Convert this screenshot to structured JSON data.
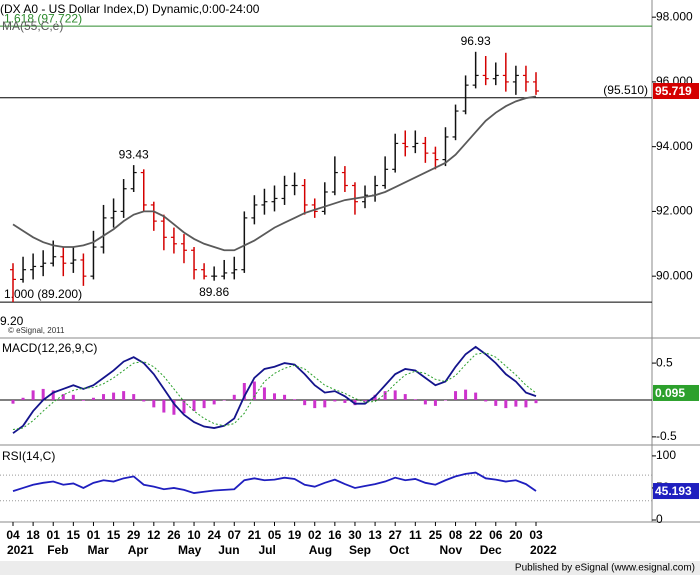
{
  "chart_data": [
    {
      "type": "ohlc",
      "title": "(DX A0 - US Dollar Index,D) Dynamic,0:00-24:00",
      "categories": [
        "04",
        null,
        "18",
        null,
        "01",
        null,
        "15",
        null,
        "01",
        null,
        "15",
        null,
        "29",
        null,
        "12",
        null,
        "26",
        null,
        "10",
        null,
        "24",
        null,
        "07",
        null,
        "21",
        null,
        "05",
        null,
        "19",
        null,
        "02",
        null,
        "16",
        null,
        "30",
        null,
        "13",
        null,
        "27",
        null,
        "11",
        null,
        "25",
        null,
        "08",
        null,
        "22",
        null,
        "06",
        null,
        "20",
        null,
        "03"
      ],
      "months": [
        "2021",
        null,
        null,
        null,
        "Feb",
        null,
        null,
        null,
        "Mar",
        null,
        null,
        null,
        "Apr",
        null,
        null,
        null,
        null,
        "May",
        null,
        null,
        null,
        "Jun",
        null,
        null,
        null,
        "Jul",
        null,
        null,
        null,
        null,
        "Aug",
        null,
        null,
        null,
        "Sep",
        null,
        null,
        null,
        "Oct",
        null,
        null,
        null,
        null,
        "Nov",
        null,
        null,
        null,
        "Dec",
        null,
        null,
        null,
        null,
        "2022"
      ],
      "open": [
        90.2,
        89.9,
        90.2,
        90.3,
        90.4,
        90.6,
        90.4,
        90.5,
        90.0,
        90.9,
        91.8,
        92.0,
        92.7,
        93.2,
        92.2,
        91.7,
        91.2,
        91.0,
        90.8,
        90.2,
        90.0,
        90.0,
        90.1,
        90.2,
        91.8,
        92.2,
        92.3,
        92.4,
        92.8,
        92.8,
        92.2,
        92.0,
        92.6,
        93.2,
        92.8,
        92.3,
        92.5,
        92.8,
        93.3,
        94.1,
        94.0,
        94.1,
        93.8,
        93.6,
        94.3,
        95.1,
        95.9,
        96.2,
        96.1,
        96.2,
        96.0,
        96.2,
        96.0
      ],
      "high": [
        90.4,
        90.6,
        90.7,
        90.8,
        91.1,
        90.9,
        90.9,
        90.7,
        91.4,
        92.2,
        92.4,
        93.0,
        93.43,
        93.3,
        92.3,
        91.9,
        91.5,
        91.3,
        90.9,
        90.4,
        90.3,
        90.5,
        90.6,
        92.0,
        92.5,
        92.7,
        92.8,
        93.1,
        93.2,
        93.0,
        92.4,
        92.9,
        93.7,
        93.4,
        92.9,
        92.8,
        93.1,
        93.7,
        94.4,
        94.5,
        94.5,
        94.3,
        94.0,
        94.6,
        95.3,
        96.2,
        96.93,
        96.8,
        96.6,
        96.9,
        96.5,
        96.5,
        96.3
      ],
      "low": [
        89.2,
        89.8,
        89.9,
        90.0,
        90.3,
        90.0,
        90.1,
        89.7,
        89.9,
        90.7,
        91.5,
        91.8,
        92.6,
        92.0,
        91.4,
        90.8,
        90.7,
        90.4,
        89.9,
        89.9,
        89.86,
        89.9,
        89.9,
        90.1,
        91.6,
        91.9,
        92.0,
        92.2,
        92.5,
        91.9,
        91.8,
        91.9,
        92.5,
        92.6,
        91.9,
        92.1,
        92.3,
        92.7,
        93.2,
        93.7,
        93.8,
        93.5,
        93.3,
        93.4,
        94.2,
        95.0,
        95.8,
        95.9,
        95.9,
        95.7,
        95.6,
        95.7,
        95.6
      ],
      "close": [
        89.9,
        90.2,
        90.3,
        90.4,
        90.6,
        90.4,
        90.5,
        90.0,
        90.9,
        91.8,
        92.0,
        92.7,
        93.2,
        92.2,
        91.7,
        91.2,
        91.0,
        90.8,
        90.2,
        90.0,
        90.0,
        90.1,
        90.2,
        91.8,
        92.2,
        92.3,
        92.4,
        92.8,
        92.8,
        92.2,
        92.0,
        92.6,
        93.2,
        92.8,
        92.3,
        92.5,
        92.8,
        93.3,
        94.1,
        94.0,
        94.1,
        93.8,
        93.6,
        94.3,
        95.1,
        95.9,
        96.2,
        96.1,
        96.2,
        96.0,
        96.2,
        96.0,
        95.719
      ],
      "up_color": "#111111",
      "down_color": "#d40000",
      "boxed": true,
      "series": [
        {
          "name": "MA(55,C,e)",
          "color": "#5a5a5a",
          "values": [
            91.6,
            91.4,
            91.2,
            91.05,
            90.95,
            90.9,
            90.9,
            90.95,
            91.05,
            91.25,
            91.45,
            91.7,
            91.9,
            92.0,
            92.0,
            91.85,
            91.6,
            91.35,
            91.15,
            91.0,
            90.9,
            90.8,
            90.8,
            90.95,
            91.1,
            91.3,
            91.5,
            91.65,
            91.8,
            91.95,
            92.05,
            92.15,
            92.25,
            92.35,
            92.4,
            92.45,
            92.5,
            92.6,
            92.75,
            92.9,
            93.05,
            93.2,
            93.35,
            93.5,
            93.75,
            94.1,
            94.45,
            94.8,
            95.05,
            95.25,
            95.4,
            95.5,
            95.55
          ]
        }
      ],
      "levels": [
        {
          "value": 97.722,
          "label": "1.618 (97.722)",
          "color": "#2e8b2e",
          "label_side": "left"
        },
        {
          "value": 95.51,
          "label": "(95.510)",
          "color": "#000000",
          "label_side": "right"
        },
        {
          "value": 89.2,
          "label": "1.000 (89.200)",
          "color": "#000000",
          "label_side": "left"
        }
      ],
      "swing_labels": [
        93.43,
        89.86,
        96.93
      ],
      "cut_label": "9.20",
      "watermark": "© eSignal, 2011",
      "ylim": [
        88.09,
        98.53
      ],
      "yticks": [
        {
          "value": 90,
          "label": "90.000"
        },
        {
          "value": 92,
          "label": "92.000"
        },
        {
          "value": 94,
          "label": "94.000"
        },
        {
          "value": 96,
          "label": "96.000"
        },
        {
          "value": 98,
          "label": "98.000"
        }
      ]
    },
    {
      "type": "macd",
      "series": [
        {
          "name": "MACD(12,26,9,C)",
          "color": "#14148c",
          "values": [
            -0.45,
            -0.35,
            -0.15,
            0.0,
            0.1,
            0.15,
            0.2,
            0.15,
            0.2,
            0.3,
            0.4,
            0.52,
            0.58,
            0.5,
            0.35,
            0.15,
            -0.05,
            -0.2,
            -0.3,
            -0.36,
            -0.38,
            -0.35,
            -0.25,
            0.05,
            0.3,
            0.42,
            0.45,
            0.5,
            0.48,
            0.35,
            0.2,
            0.1,
            0.12,
            0.05,
            -0.05,
            -0.05,
            0.05,
            0.2,
            0.35,
            0.42,
            0.4,
            0.3,
            0.2,
            0.25,
            0.45,
            0.62,
            0.72,
            0.62,
            0.5,
            0.35,
            0.25,
            0.1,
            0.052
          ]
        },
        {
          "color": "#2ca02c",
          "dash": true,
          "boxed": true,
          "values": [
            -0.4,
            -0.38,
            -0.28,
            -0.15,
            -0.03,
            0.07,
            0.13,
            0.16,
            0.17,
            0.22,
            0.3,
            0.4,
            0.5,
            0.52,
            0.45,
            0.32,
            0.15,
            -0.02,
            -0.15,
            -0.25,
            -0.32,
            -0.35,
            -0.32,
            -0.18,
            0.05,
            0.25,
            0.36,
            0.43,
            0.47,
            0.42,
            0.31,
            0.2,
            0.14,
            0.09,
            0.02,
            -0.03,
            -0.02,
            0.08,
            0.22,
            0.34,
            0.39,
            0.36,
            0.28,
            0.25,
            0.33,
            0.48,
            0.62,
            0.64,
            0.58,
            0.46,
            0.34,
            0.2,
            0.095
          ]
        }
      ],
      "histogram": {
        "color": "#cc33cc",
        "values": [
          -0.05,
          0.03,
          0.13,
          0.15,
          0.13,
          0.08,
          0.07,
          -0.01,
          0.03,
          0.08,
          0.1,
          0.12,
          0.08,
          -0.02,
          -0.1,
          -0.17,
          -0.2,
          -0.18,
          -0.15,
          -0.11,
          -0.06,
          0,
          0.07,
          0.23,
          0.25,
          0.17,
          0.09,
          0.07,
          0.01,
          -0.07,
          -0.11,
          -0.1,
          -0.02,
          -0.04,
          -0.07,
          -0.02,
          0.07,
          0.12,
          0.13,
          0.08,
          0.01,
          -0.06,
          -0.08,
          0,
          0.12,
          0.14,
          0.1,
          -0.02,
          -0.08,
          -0.11,
          -0.09,
          -0.1,
          -0.043
        ]
      },
      "zero_line": true,
      "ylim": [
        -0.61,
        0.84
      ],
      "yticks": [
        -0.5,
        0.5
      ]
    },
    {
      "type": "line",
      "series": [
        {
          "name": "RSI(14,C)",
          "color": "#1f1fbf",
          "boxed": true,
          "values": [
            45,
            50,
            55,
            58,
            60,
            55,
            57,
            50,
            58,
            62,
            60,
            65,
            68,
            55,
            52,
            48,
            50,
            47,
            42,
            44,
            46,
            47,
            48,
            62,
            65,
            62,
            63,
            66,
            64,
            55,
            52,
            58,
            63,
            56,
            50,
            53,
            56,
            60,
            66,
            62,
            64,
            58,
            55,
            62,
            68,
            72,
            74,
            65,
            63,
            60,
            62,
            56,
            45.193
          ]
        }
      ],
      "ref_lines": [
        70,
        30
      ],
      "ylim": [
        0,
        117
      ],
      "yticks": [
        0,
        50,
        100
      ]
    }
  ],
  "footer": "Published by eSignal (www.esignal.com)"
}
